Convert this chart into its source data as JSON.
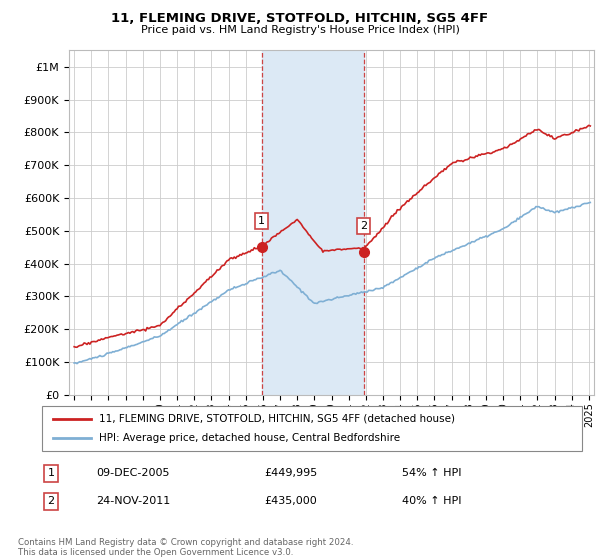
{
  "title": "11, FLEMING DRIVE, STOTFOLD, HITCHIN, SG5 4FF",
  "subtitle": "Price paid vs. HM Land Registry's House Price Index (HPI)",
  "legend_line1": "11, FLEMING DRIVE, STOTFOLD, HITCHIN, SG5 4FF (detached house)",
  "legend_line2": "HPI: Average price, detached house, Central Bedfordshire",
  "transaction1_date": "09-DEC-2005",
  "transaction1_price": 449995,
  "transaction1_label": "£449,995",
  "transaction1_hpi": "54% ↑ HPI",
  "transaction2_date": "24-NOV-2011",
  "transaction2_price": 435000,
  "transaction2_label": "£435,000",
  "transaction2_hpi": "40% ↑ HPI",
  "footnote": "Contains HM Land Registry data © Crown copyright and database right 2024.\nThis data is licensed under the Open Government Licence v3.0.",
  "hpi_color": "#7fafd4",
  "price_color": "#cc2222",
  "highlight_color": "#dce9f5",
  "vline_color": "#cc4444",
  "background_color": "#ffffff",
  "grid_color": "#cccccc",
  "ylim": [
    0,
    1050000
  ],
  "xlim_start": 1994.7,
  "xlim_end": 2025.3,
  "t1_year": 2005.92,
  "t2_year": 2011.87
}
